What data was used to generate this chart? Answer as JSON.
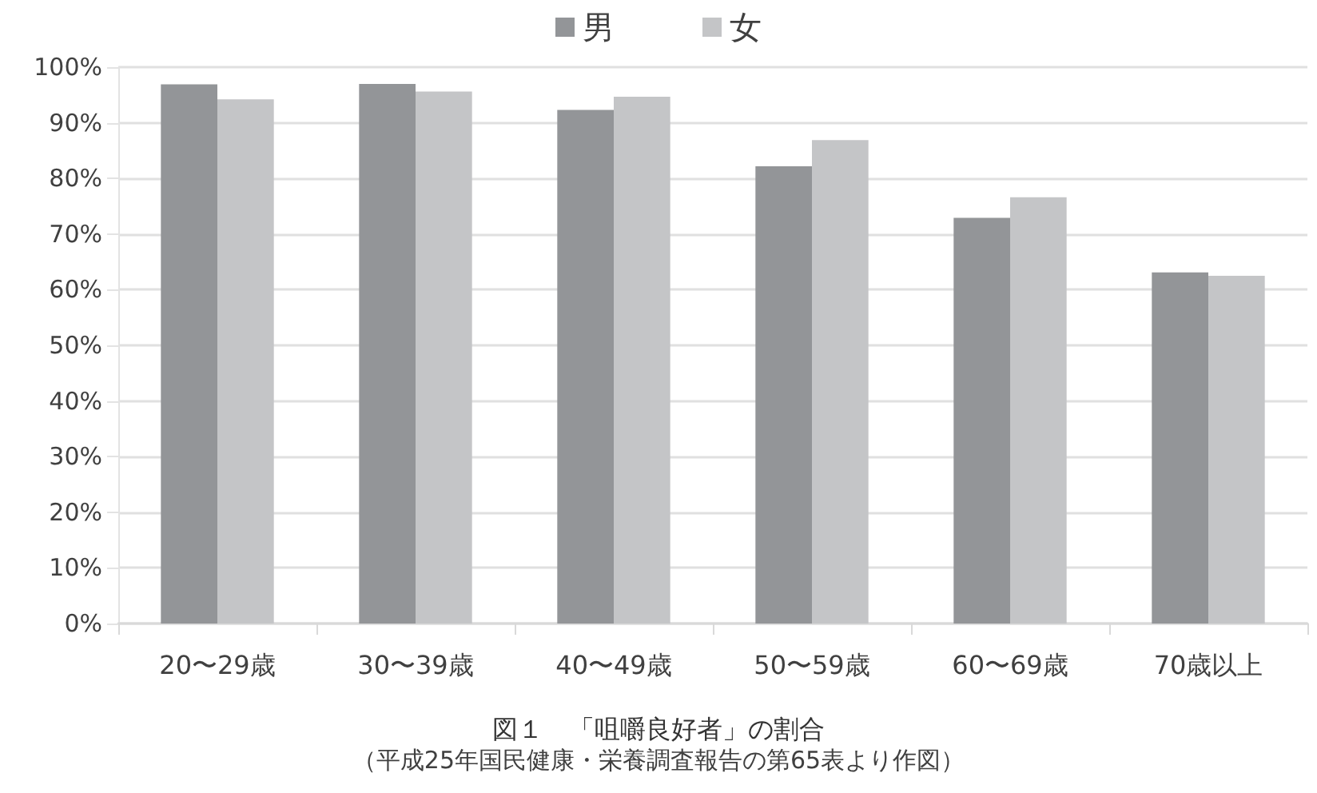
{
  "chart_data": {
    "type": "bar",
    "title": "図１　「咀嚼良好者」の割合",
    "annotations": [
      "（平成25年国民健康・栄養調査報告の第65表より作図）"
    ],
    "categories": [
      "20〜29歳",
      "30〜39歳",
      "40〜49歳",
      "50〜59歳",
      "60〜69歳",
      "70歳以上"
    ],
    "series": [
      {
        "name": "男",
        "color": "#939598",
        "values": [
          96.9,
          97.0,
          92.3,
          82.2,
          72.9,
          63.1
        ]
      },
      {
        "name": "女",
        "color": "#c4c5c7",
        "values": [
          94.2,
          95.6,
          94.7,
          86.9,
          76.6,
          62.5
        ]
      }
    ],
    "ylim": [
      0,
      100
    ],
    "yticks": [
      {
        "value": 0,
        "label": "0%"
      },
      {
        "value": 10,
        "label": "10%"
      },
      {
        "value": 20,
        "label": "20%"
      },
      {
        "value": 30,
        "label": "30%"
      },
      {
        "value": 40,
        "label": "40%"
      },
      {
        "value": 50,
        "label": "50%"
      },
      {
        "value": 60,
        "label": "60%"
      },
      {
        "value": 70,
        "label": "70%"
      },
      {
        "value": 80,
        "label": "80%"
      },
      {
        "value": 90,
        "label": "90%"
      },
      {
        "value": 100,
        "label": "100%"
      }
    ],
    "grid": "y",
    "legend": "top"
  }
}
